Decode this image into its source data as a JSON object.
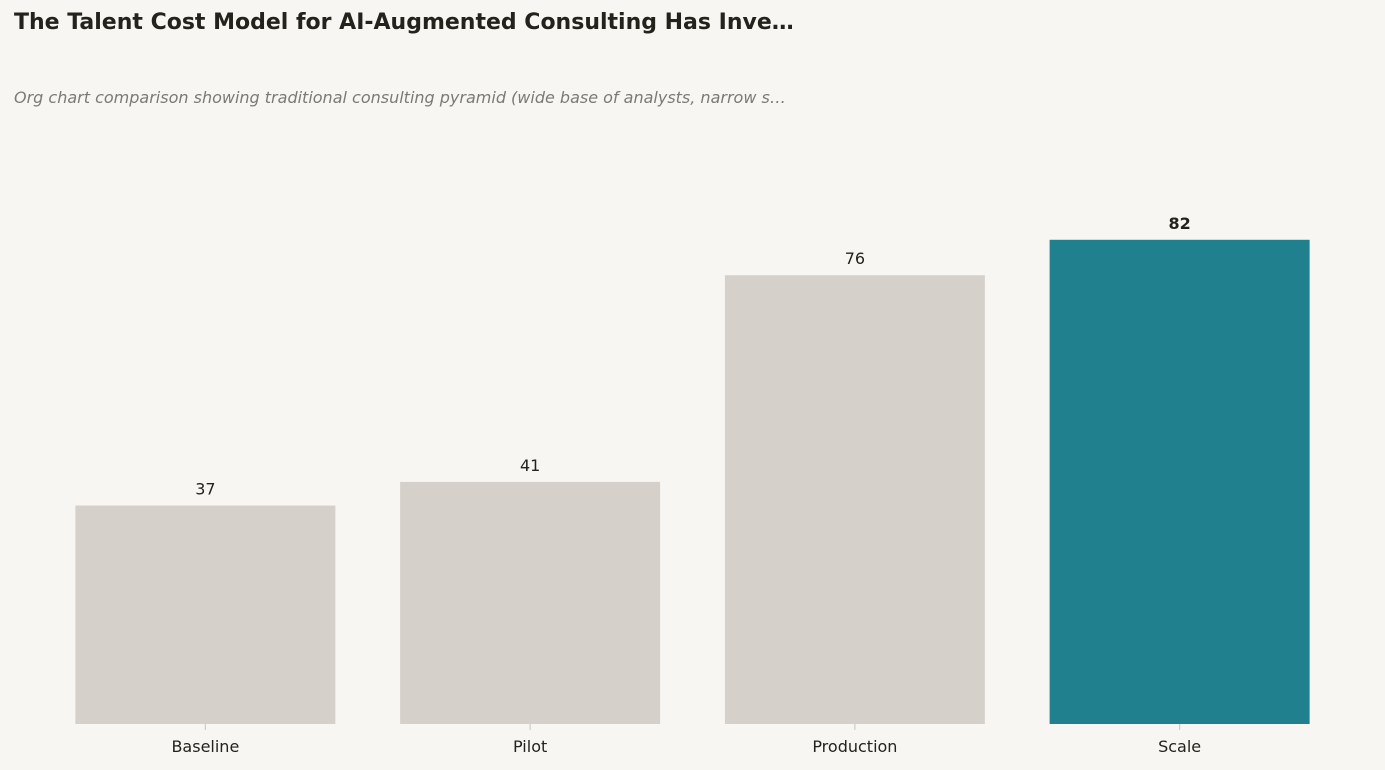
{
  "colors": {
    "background": "#f7f6f3",
    "bar_default": "#d5d1ca",
    "bar_highlight": "#21808d",
    "text": "#23231c",
    "subtitle_text": "#7a7a76",
    "tick": "#cfcbc4"
  },
  "chart_data": {
    "type": "bar",
    "title": "The Talent Cost Model for AI-Augmented Consulting Has Inve…",
    "subtitle": "Org chart comparison showing traditional consulting pyramid (wide base of analysts, narrow s…",
    "categories": [
      "Baseline",
      "Pilot",
      "Production",
      "Scale"
    ],
    "values": [
      37,
      41,
      76,
      82
    ],
    "value_labels": [
      "37",
      "41",
      "76",
      "82"
    ],
    "highlight_index": 3,
    "xlabel": "",
    "ylabel": "",
    "ylim": [
      0,
      90
    ],
    "grid": false,
    "y_axis_visible": false
  }
}
